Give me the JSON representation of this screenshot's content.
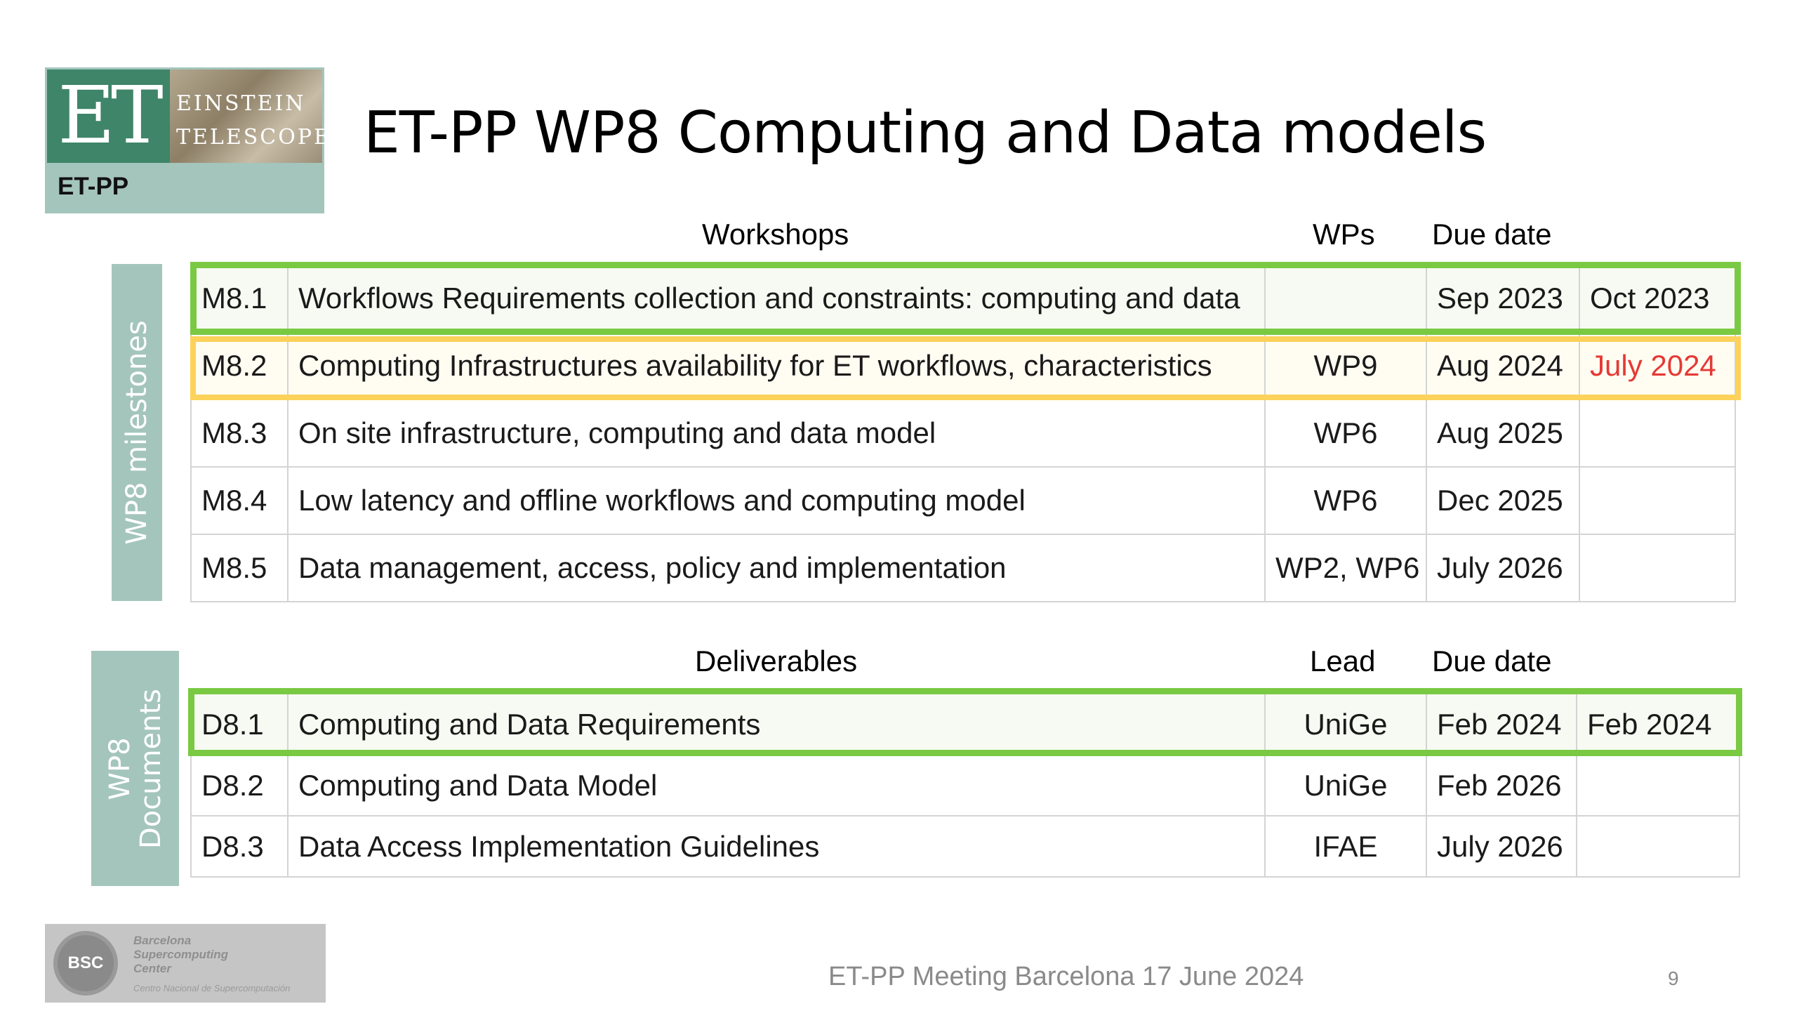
{
  "logo": {
    "mark": "ET",
    "words_line1": "EINSTEIN",
    "words_line2": "TELESCOPE",
    "project": "ET-PP"
  },
  "title": "ET-PP WP8 Computing and Data models",
  "milestones": {
    "side_label": "WP8 milestones",
    "headers": {
      "name": "Workshops",
      "wps": "WPs",
      "due": "Due date"
    },
    "rows": [
      {
        "id": "M8.1",
        "desc": "Workflows Requirements collection and constraints: computing and data",
        "wp": "",
        "due": "Sep 2023",
        "actual": "Oct 2023"
      },
      {
        "id": "M8.2",
        "desc": "Computing Infrastructures availability for ET workflows, characteristics",
        "wp": "WP9",
        "due": "Aug 2024",
        "actual": "July 2024"
      },
      {
        "id": "M8.3",
        "desc": "On site infrastructure, computing and data model",
        "wp": "WP6",
        "due": "Aug 2025",
        "actual": ""
      },
      {
        "id": "M8.4",
        "desc": "Low latency and offline workflows and computing model",
        "wp": "WP6",
        "due": "Dec 2025",
        "actual": ""
      },
      {
        "id": "M8.5",
        "desc": "Data management, access, policy and implementation",
        "wp": "WP2, WP6",
        "due": "July 2026",
        "actual": ""
      }
    ]
  },
  "deliverables": {
    "side_label_line1": "WP8",
    "side_label_line2": "Documents",
    "headers": {
      "name": "Deliverables",
      "lead": "Lead",
      "due": "Due date"
    },
    "rows": [
      {
        "id": "D8.1",
        "desc": "Computing and Data Requirements",
        "lead": "UniGe",
        "due": "Feb 2024",
        "actual": "Feb 2024"
      },
      {
        "id": "D8.2",
        "desc": "Computing and Data Model",
        "lead": "UniGe",
        "due": "Feb 2026",
        "actual": ""
      },
      {
        "id": "D8.3",
        "desc": "Data Access Implementation Guidelines",
        "lead": "IFAE",
        "due": "July 2026",
        "actual": ""
      }
    ]
  },
  "bsc_logo": {
    "abbr": "BSC",
    "line1": "Barcelona",
    "line2": "Supercomputing",
    "line3": "Center",
    "line4": "Centro Nacional de Supercomputación"
  },
  "footer": "ET-PP Meeting Barcelona 17 June 2024",
  "page_number": "9",
  "colors": {
    "green_highlight": "#7ac943",
    "yellow_highlight": "#fcd25b",
    "side_label_bg": "#a4c5bc",
    "red_text": "#e53935"
  }
}
